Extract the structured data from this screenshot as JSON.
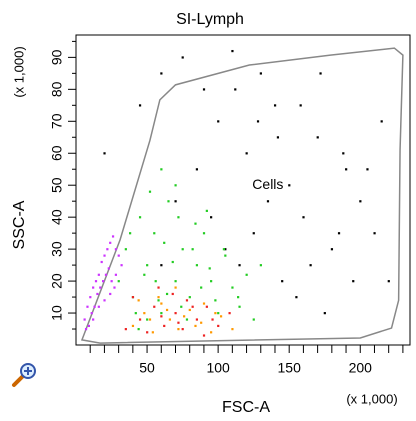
{
  "chart_data": {
    "type": "scatter",
    "title": "SI-Lymph",
    "x_label": "FSC-A",
    "y_label": "SSC-A",
    "x_scale_label": "(x 1,000)",
    "y_scale_label": "(x 1,000)",
    "xlim": [
      0,
      235
    ],
    "ylim": [
      0,
      97
    ],
    "xticks": [
      50,
      100,
      150,
      200
    ],
    "xminorticks": [
      10,
      20,
      30,
      40,
      60,
      70,
      80,
      90,
      110,
      120,
      130,
      140,
      160,
      170,
      180,
      190,
      210,
      220,
      230
    ],
    "yticks": [
      10,
      20,
      30,
      40,
      50,
      60,
      70,
      80,
      90
    ],
    "yminorticks": [
      5,
      15,
      25,
      35,
      45,
      55,
      65,
      75,
      85,
      95
    ],
    "gate": {
      "label": "Cells",
      "label_x": 135,
      "label_y": 50,
      "x": [
        4.2,
        31,
        52,
        59,
        70,
        122,
        179,
        224,
        230,
        228,
        227,
        222,
        200,
        17
      ],
      "y": [
        1.6,
        32.9,
        64,
        76.7,
        81.4,
        87.6,
        90.7,
        92.9,
        90.7,
        61,
        14,
        5.3,
        2.2,
        0.6
      ]
    },
    "series": [
      {
        "color": "#000000",
        "x": [
          20,
          45,
          60,
          75,
          90,
          100,
          110,
          120,
          130,
          140,
          150,
          160,
          170,
          180,
          190,
          200,
          210,
          220,
          95,
          105,
          115,
          125,
          135,
          145,
          155,
          165,
          175,
          185,
          195,
          205,
          85,
          70,
          112,
          128,
          142,
          158,
          172,
          188,
          60,
          215
        ],
        "values": [
          60,
          75,
          85,
          90,
          80,
          70,
          92,
          60,
          85,
          75,
          50,
          40,
          65,
          30,
          55,
          45,
          35,
          20,
          40,
          30,
          25,
          35,
          45,
          20,
          15,
          25,
          10,
          35,
          20,
          55,
          55,
          45,
          80,
          70,
          65,
          75,
          85,
          60,
          25,
          70
        ]
      },
      {
        "color": "#22cc22",
        "x": [
          30,
          35,
          40,
          45,
          50,
          55,
          60,
          65,
          70,
          75,
          80,
          85,
          90,
          95,
          100,
          105,
          110,
          115,
          120,
          125,
          42,
          48,
          52,
          58,
          62,
          68,
          72,
          78,
          82,
          88,
          92,
          98,
          38,
          44,
          56,
          64,
          74,
          84,
          94,
          104,
          114,
          60,
          70,
          50,
          130
        ],
        "values": [
          20,
          30,
          15,
          40,
          25,
          35,
          10,
          45,
          20,
          30,
          15,
          25,
          35,
          20,
          10,
          28,
          18,
          12,
          22,
          8,
          10,
          22,
          48,
          14,
          32,
          26,
          40,
          8,
          30,
          18,
          42,
          14,
          35,
          5,
          20,
          16,
          12,
          38,
          24,
          30,
          15,
          55,
          50,
          8,
          25
        ]
      },
      {
        "color": "#cc33ff",
        "x": [
          6,
          8,
          10,
          12,
          14,
          16,
          18,
          20,
          22,
          24,
          26,
          28,
          30,
          32,
          9,
          11,
          13,
          15,
          17,
          19,
          21,
          23,
          25,
          27,
          7,
          12,
          16,
          20,
          24,
          28
        ],
        "values": [
          8,
          12,
          15,
          18,
          20,
          22,
          26,
          28,
          30,
          32,
          34,
          30,
          28,
          25,
          6,
          10,
          12,
          16,
          18,
          20,
          22,
          24,
          20,
          18,
          5,
          8,
          12,
          14,
          16,
          22
        ]
      },
      {
        "color": "#ee2222",
        "x": [
          35,
          45,
          55,
          62,
          70,
          78,
          85,
          92,
          100,
          108,
          40,
          50,
          60,
          68,
          75,
          82,
          90,
          96,
          58,
          72
        ],
        "values": [
          5,
          8,
          12,
          6,
          10,
          14,
          8,
          12,
          6,
          10,
          15,
          4,
          9,
          16,
          5,
          12,
          3,
          8,
          18,
          7
        ]
      },
      {
        "color": "#ff9900",
        "x": [
          40,
          48,
          54,
          60,
          66,
          72,
          80,
          88,
          95,
          102,
          44,
          52,
          58,
          64,
          70,
          76,
          84,
          90,
          98,
          110
        ],
        "values": [
          6,
          10,
          4,
          13,
          8,
          5,
          11,
          7,
          4,
          9,
          14,
          8,
          15,
          11,
          18,
          9,
          6,
          13,
          10,
          5
        ]
      }
    ]
  }
}
